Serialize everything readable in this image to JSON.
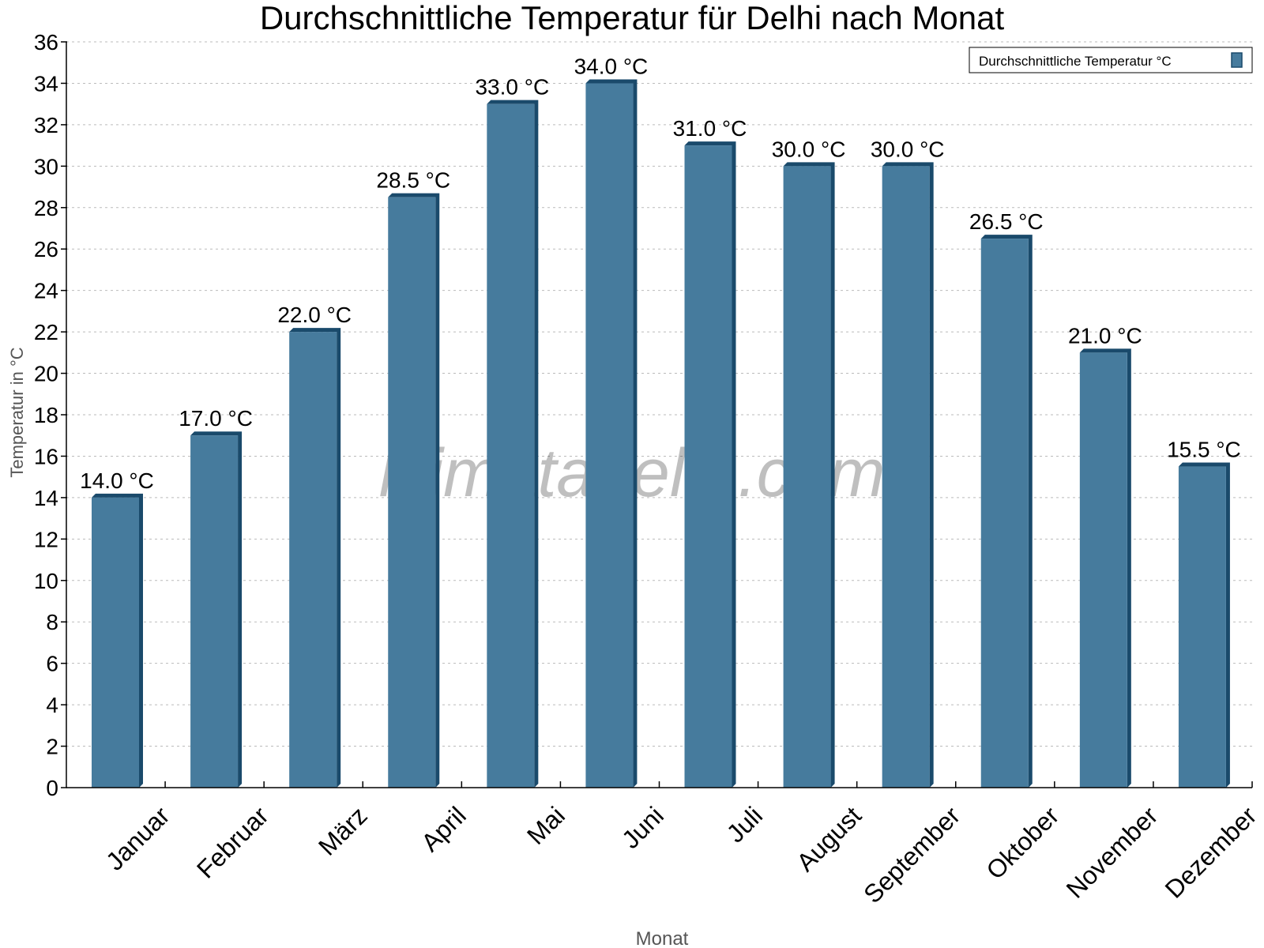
{
  "chart_data": {
    "type": "bar",
    "title": "Durchschnittliche Temperatur für Delhi nach Monat",
    "xlabel": "Monat",
    "ylabel": "Temperatur in °C",
    "categories": [
      "Januar",
      "Februar",
      "März",
      "April",
      "Mai",
      "Juni",
      "Juli",
      "August",
      "September",
      "Oktober",
      "November",
      "Dezember"
    ],
    "series": [
      {
        "name": "Durchschnittliche Temperatur °C",
        "values": [
          14.0,
          17.0,
          22.0,
          28.5,
          33.0,
          34.0,
          31.0,
          30.0,
          30.0,
          26.5,
          21.0,
          15.5
        ]
      }
    ],
    "data_labels": [
      "14.0 °C",
      "17.0 °C",
      "22.0 °C",
      "28.5 °C",
      "33.0 °C",
      "34.0 °C",
      "31.0 °C",
      "30.0 °C",
      "30.0 °C",
      "26.5 °C",
      "21.0 °C",
      "15.5 °C"
    ],
    "ylim": [
      0,
      36
    ],
    "yticks": [
      0,
      2,
      4,
      6,
      8,
      10,
      12,
      14,
      16,
      18,
      20,
      22,
      24,
      26,
      28,
      30,
      32,
      34,
      36
    ],
    "grid": true,
    "legend": "top-right",
    "bar_color": "#467b9d",
    "bar_shade_color": "#1a4a6b",
    "watermark": "klimatabelle.com"
  }
}
